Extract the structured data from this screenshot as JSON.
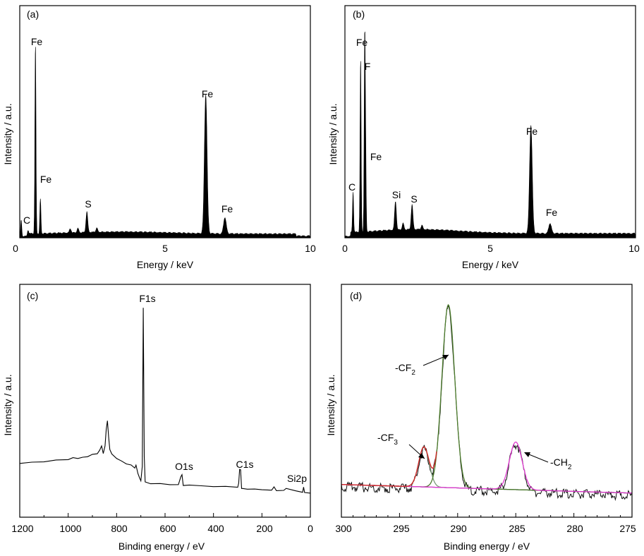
{
  "chart_data": [
    {
      "panel": "(a)",
      "type": "line",
      "xlabel": "Energy / keV",
      "ylabel": "Intensity / a.u.",
      "xlim": [
        0,
        10
      ],
      "xticks": [
        "0",
        "5",
        "10"
      ],
      "ylim": [
        0,
        1
      ],
      "grid": false,
      "peaks": [
        {
          "x": 0.05,
          "y": 0.08
        },
        {
          "x": 0.28,
          "y": 0.03
        },
        {
          "x": 0.54,
          "y": 0.94
        },
        {
          "x": 0.71,
          "y": 0.17
        },
        {
          "x": 1.74,
          "y": 0.02
        },
        {
          "x": 2.0,
          "y": 0.02
        },
        {
          "x": 2.31,
          "y": 0.1
        },
        {
          "x": 2.65,
          "y": 0.02
        },
        {
          "x": 6.4,
          "y": 0.68
        },
        {
          "x": 7.06,
          "y": 0.08
        }
      ],
      "labels": [
        {
          "text": "Fe",
          "x": 0.54,
          "y": 0.94
        },
        {
          "text": "Fe",
          "x": 0.71,
          "y": 0.17
        },
        {
          "text": "C",
          "x": 0.28,
          "y": 0.03
        },
        {
          "text": "S",
          "x": 2.31,
          "y": 0.1
        },
        {
          "text": "Fe",
          "x": 6.4,
          "y": 0.68
        },
        {
          "text": "Fe",
          "x": 7.06,
          "y": 0.08
        }
      ]
    },
    {
      "panel": "(b)",
      "type": "line",
      "xlabel": "Energy / keV",
      "ylabel": "Intensity / a.u.",
      "xlim": [
        0,
        10
      ],
      "xticks": [
        "0",
        "5",
        "10"
      ],
      "ylim": [
        0,
        1
      ],
      "grid": false,
      "peaks": [
        {
          "x": 0.28,
          "y": 0.2
        },
        {
          "x": 0.54,
          "y": 0.86
        },
        {
          "x": 0.68,
          "y": 0.9
        },
        {
          "x": 0.71,
          "y": 0.38
        },
        {
          "x": 1.74,
          "y": 0.14
        },
        {
          "x": 2.0,
          "y": 0.03
        },
        {
          "x": 2.31,
          "y": 0.12
        },
        {
          "x": 2.65,
          "y": 0.02
        },
        {
          "x": 6.4,
          "y": 0.53
        },
        {
          "x": 7.06,
          "y": 0.05
        }
      ],
      "labels": [
        {
          "text": "Fe",
          "x": 0.54,
          "y": 0.86
        },
        {
          "text": "F",
          "x": 0.68,
          "y": 0.9
        },
        {
          "text": "Fe",
          "x": 0.71,
          "y": 0.38
        },
        {
          "text": "C",
          "x": 0.28,
          "y": 0.2
        },
        {
          "text": "Si",
          "x": 1.74,
          "y": 0.14
        },
        {
          "text": "S",
          "x": 2.31,
          "y": 0.12
        },
        {
          "text": "Fe",
          "x": 6.4,
          "y": 0.53
        },
        {
          "text": "Fe",
          "x": 7.06,
          "y": 0.05
        }
      ]
    },
    {
      "panel": "(c)",
      "type": "line",
      "xlabel": "Binding energy / eV",
      "ylabel": "Intensity / a.u.",
      "xlim": [
        1200,
        0
      ],
      "xticks": [
        "1200",
        "1000",
        "800",
        "600",
        "400",
        "200",
        "0"
      ],
      "ylim": [
        0,
        1
      ],
      "grid": false,
      "x": [
        1200,
        1150,
        1100,
        1050,
        1000,
        980,
        960,
        940,
        920,
        900,
        880,
        870,
        862,
        855,
        848,
        843,
        838,
        833,
        828,
        820,
        800,
        780,
        760,
        740,
        725,
        720,
        712,
        705,
        700,
        694,
        690,
        686,
        682,
        660,
        620,
        580,
        545,
        535,
        530,
        525,
        500,
        450,
        400,
        350,
        300,
        296,
        292,
        288,
        284,
        280,
        260,
        230,
        200,
        160,
        150,
        140,
        110,
        100,
        60,
        32,
        28,
        24,
        0
      ],
      "y": [
        0.16,
        0.166,
        0.172,
        0.177,
        0.183,
        0.19,
        0.186,
        0.192,
        0.198,
        0.204,
        0.212,
        0.23,
        0.25,
        0.215,
        0.25,
        0.34,
        0.38,
        0.3,
        0.23,
        0.21,
        0.185,
        0.17,
        0.16,
        0.15,
        0.138,
        0.15,
        0.11,
        0.08,
        0.07,
        0.14,
        0.98,
        0.2,
        0.06,
        0.055,
        0.052,
        0.05,
        0.048,
        0.09,
        0.1,
        0.045,
        0.044,
        0.042,
        0.04,
        0.038,
        0.036,
        0.055,
        0.13,
        0.125,
        0.03,
        0.028,
        0.026,
        0.024,
        0.022,
        0.02,
        0.035,
        0.018,
        0.016,
        0.03,
        0.014,
        0.012,
        0.035,
        0.01,
        0.008
      ],
      "labels": [
        {
          "text": "F1s",
          "x": 690,
          "y": 0.98
        },
        {
          "text": "O1s",
          "x": 530,
          "y": 0.1
        },
        {
          "text": "C1s",
          "x": 290,
          "y": 0.13
        },
        {
          "text": "Si2p",
          "x": 100,
          "y": 0.035
        }
      ]
    },
    {
      "panel": "(d)",
      "type": "line",
      "xlabel": "Binding energy / eV",
      "ylabel": "Intensity / a.u.",
      "xlim": [
        300,
        275
      ],
      "xticks": [
        "300",
        "295",
        "290",
        "285",
        "280",
        "275"
      ],
      "ylim": [
        0,
        1
      ],
      "grid": false,
      "baseline": {
        "start": [
          300,
          0.105
        ],
        "end": [
          275,
          0.06
        ]
      },
      "components": [
        {
          "name": "-CF3",
          "center": 292.9,
          "height": 0.21,
          "sigma": 0.45,
          "color": "#d02a2a"
        },
        {
          "name": "-CF2",
          "center": 290.8,
          "height": 0.96,
          "sigma": 0.55,
          "color": "#4a7a2a"
        },
        {
          "name": "-CH2",
          "center": 285.0,
          "height": 0.25,
          "sigma": 0.55,
          "color": "#e03ad0"
        }
      ],
      "labels": [
        {
          "text": "-CF",
          "sub": "2",
          "x": 290.8,
          "y": 0.6
        },
        {
          "text": "-CF",
          "sub": "3",
          "x": 292.9,
          "y": 0.25
        },
        {
          "text": "-CH",
          "sub": "2",
          "x": 285.0,
          "y": 0.23
        }
      ],
      "colors": {
        "experimental": "#111111",
        "envelope": "#d02a2a",
        "cf3_fit": "#7a9a7a",
        "cf2_fit": "#4a7a2a",
        "ch2_fit": "#e03ad0",
        "baseline": "#6633aa"
      }
    }
  ]
}
